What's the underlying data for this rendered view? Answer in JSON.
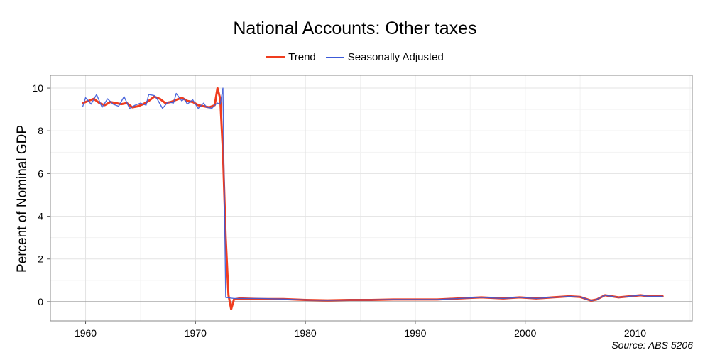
{
  "chart_data": {
    "type": "line",
    "title": "National Accounts: Other taxes",
    "xlabel": "",
    "ylabel": "Percent of Nominal GDP",
    "source": "Source: ABS 5206",
    "xlim": [
      1956.8,
      2015.2
    ],
    "ylim": [
      -0.9,
      10.6
    ],
    "x_ticks": [
      1960,
      1970,
      1980,
      1990,
      2000,
      2010
    ],
    "y_ticks": [
      0,
      2,
      4,
      6,
      8,
      10
    ],
    "grid": true,
    "legend_position": "top-center",
    "series": [
      {
        "name": "Trend",
        "color": "#f03c1e",
        "points": [
          [
            1959.75,
            9.3
          ],
          [
            1960.25,
            9.4
          ],
          [
            1960.75,
            9.5
          ],
          [
            1961.25,
            9.3
          ],
          [
            1961.75,
            9.2
          ],
          [
            1962.25,
            9.35
          ],
          [
            1962.75,
            9.3
          ],
          [
            1963.25,
            9.25
          ],
          [
            1963.75,
            9.3
          ],
          [
            1964.25,
            9.1
          ],
          [
            1964.75,
            9.15
          ],
          [
            1965.25,
            9.25
          ],
          [
            1965.75,
            9.4
          ],
          [
            1966.25,
            9.6
          ],
          [
            1966.75,
            9.5
          ],
          [
            1967.25,
            9.3
          ],
          [
            1967.75,
            9.35
          ],
          [
            1968.25,
            9.45
          ],
          [
            1968.75,
            9.55
          ],
          [
            1969.25,
            9.4
          ],
          [
            1969.75,
            9.35
          ],
          [
            1970.25,
            9.2
          ],
          [
            1970.75,
            9.15
          ],
          [
            1971.25,
            9.1
          ],
          [
            1971.75,
            9.2
          ],
          [
            1972.0,
            10.0
          ],
          [
            1972.25,
            9.5
          ],
          [
            1972.5,
            7.0
          ],
          [
            1972.75,
            3.0
          ],
          [
            1973.0,
            0.3
          ],
          [
            1973.25,
            -0.35
          ],
          [
            1973.5,
            0.1
          ],
          [
            1974.0,
            0.15
          ],
          [
            1976.0,
            0.12
          ],
          [
            1978.0,
            0.12
          ],
          [
            1980.0,
            0.08
          ],
          [
            1982.0,
            0.06
          ],
          [
            1984.0,
            0.08
          ],
          [
            1986.0,
            0.08
          ],
          [
            1988.0,
            0.1
          ],
          [
            1990.0,
            0.1
          ],
          [
            1992.0,
            0.1
          ],
          [
            1994.0,
            0.15
          ],
          [
            1996.0,
            0.2
          ],
          [
            1998.0,
            0.15
          ],
          [
            1999.5,
            0.2
          ],
          [
            2001.0,
            0.15
          ],
          [
            2002.5,
            0.2
          ],
          [
            2004.0,
            0.25
          ],
          [
            2005.0,
            0.22
          ],
          [
            2006.0,
            0.05
          ],
          [
            2006.5,
            0.1
          ],
          [
            2007.25,
            0.3
          ],
          [
            2008.5,
            0.2
          ],
          [
            2009.5,
            0.25
          ],
          [
            2010.5,
            0.3
          ],
          [
            2011.25,
            0.25
          ],
          [
            2012.5,
            0.25
          ]
        ]
      },
      {
        "name": "Seasonally Adjusted",
        "color": "#3c5ad8",
        "points": [
          [
            1959.75,
            9.15
          ],
          [
            1960.0,
            9.55
          ],
          [
            1960.5,
            9.25
          ],
          [
            1961.0,
            9.7
          ],
          [
            1961.5,
            9.1
          ],
          [
            1962.0,
            9.5
          ],
          [
            1962.5,
            9.25
          ],
          [
            1963.0,
            9.15
          ],
          [
            1963.5,
            9.6
          ],
          [
            1964.0,
            9.05
          ],
          [
            1964.5,
            9.2
          ],
          [
            1965.0,
            9.3
          ],
          [
            1965.5,
            9.2
          ],
          [
            1965.75,
            9.7
          ],
          [
            1966.25,
            9.65
          ],
          [
            1966.5,
            9.5
          ],
          [
            1967.0,
            9.05
          ],
          [
            1967.5,
            9.35
          ],
          [
            1968.0,
            9.3
          ],
          [
            1968.25,
            9.75
          ],
          [
            1968.75,
            9.4
          ],
          [
            1969.0,
            9.5
          ],
          [
            1969.25,
            9.25
          ],
          [
            1969.75,
            9.45
          ],
          [
            1970.25,
            9.05
          ],
          [
            1970.75,
            9.3
          ],
          [
            1971.0,
            9.1
          ],
          [
            1971.5,
            9.05
          ],
          [
            1971.75,
            9.2
          ],
          [
            1972.0,
            9.3
          ],
          [
            1972.25,
            9.25
          ],
          [
            1972.5,
            10.0
          ],
          [
            1972.75,
            0.2
          ],
          [
            1973.5,
            0.15
          ],
          [
            1974.0,
            0.15
          ],
          [
            1976.0,
            0.15
          ],
          [
            1978.0,
            0.12
          ],
          [
            1980.0,
            0.08
          ],
          [
            1982.0,
            0.06
          ],
          [
            1984.0,
            0.08
          ],
          [
            1986.0,
            0.08
          ],
          [
            1988.0,
            0.1
          ],
          [
            1990.0,
            0.1
          ],
          [
            1992.0,
            0.1
          ],
          [
            1994.0,
            0.15
          ],
          [
            1996.0,
            0.2
          ],
          [
            1998.0,
            0.15
          ],
          [
            1999.5,
            0.2
          ],
          [
            2001.0,
            0.15
          ],
          [
            2002.5,
            0.2
          ],
          [
            2004.0,
            0.25
          ],
          [
            2005.0,
            0.22
          ],
          [
            2006.0,
            0.05
          ],
          [
            2006.5,
            0.1
          ],
          [
            2007.25,
            0.3
          ],
          [
            2008.5,
            0.2
          ],
          [
            2009.5,
            0.25
          ],
          [
            2010.5,
            0.3
          ],
          [
            2011.25,
            0.25
          ],
          [
            2012.5,
            0.25
          ]
        ]
      }
    ]
  }
}
